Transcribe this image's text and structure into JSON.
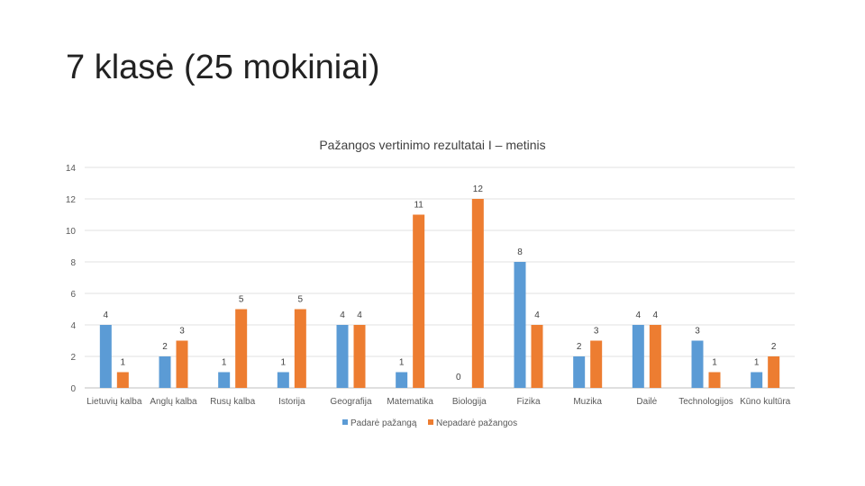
{
  "slide": {
    "title": "7 klasė  (25 mokiniai)"
  },
  "chart_data": {
    "type": "bar",
    "title": "Pažangos vertinimo rezultatai I – metinis",
    "xlabel": "",
    "ylabel": "",
    "ylim": [
      0,
      14
    ],
    "yticks": [
      0,
      2,
      4,
      6,
      8,
      10,
      12,
      14
    ],
    "grid": true,
    "legend_position": "bottom",
    "categories": [
      "Lietuvių kalba",
      "Anglų kalba",
      "Rusų kalba",
      "Istorija",
      "Geografija",
      "Matematika",
      "Biologija",
      "Fizika",
      "Muzika",
      "Dailė",
      "Technologijos",
      "Kūno kultūra"
    ],
    "series": [
      {
        "name": "Padarė pažangą",
        "color": "#5B9BD5",
        "values": [
          4,
          2,
          1,
          1,
          4,
          1,
          null,
          8,
          2,
          4,
          3,
          1
        ]
      },
      {
        "name": "Nepadarė pažangos",
        "color": "#ED7D31",
        "values": [
          1,
          3,
          5,
          5,
          4,
          11,
          12,
          4,
          3,
          4,
          1,
          2
        ]
      }
    ],
    "annotations": [
      "0"
    ]
  }
}
